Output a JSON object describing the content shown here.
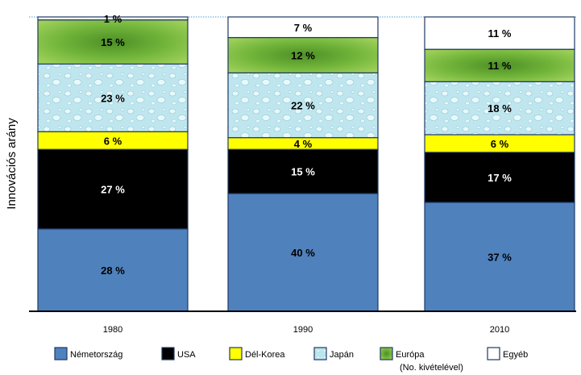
{
  "chart_data": {
    "type": "bar",
    "stacked": true,
    "ylabel": "Innovációs arány",
    "xlabel": "",
    "title": "",
    "categories": [
      "1980",
      "1990",
      "2010"
    ],
    "ylim": [
      0,
      100
    ],
    "series": [
      {
        "name": "Németország",
        "values": [
          28,
          40,
          37
        ],
        "labels": [
          "28 %",
          "40 %",
          "37 %"
        ],
        "color": "#4f81bd",
        "text_color": "#000000",
        "pattern": "solid"
      },
      {
        "name": "USA",
        "values": [
          27,
          15,
          17
        ],
        "labels": [
          "27 %",
          "15 %",
          "17 %"
        ],
        "color": "#000000",
        "text_color": "#ffffff",
        "pattern": "solid"
      },
      {
        "name": "Dél-Korea",
        "values": [
          6,
          4,
          6
        ],
        "labels": [
          "6 %",
          "4 %",
          "6 %"
        ],
        "color": "#ffff00",
        "text_color": "#000000",
        "pattern": "solid"
      },
      {
        "name": "Japán",
        "values": [
          23,
          22,
          18
        ],
        "labels": [
          "23 %",
          "22 %",
          "18 %"
        ],
        "color": "#b8e2ea",
        "text_color": "#000000",
        "pattern": "water-drops"
      },
      {
        "name": "Európa",
        "name_sub": "(No. kivételével)",
        "values": [
          15,
          12,
          11
        ],
        "labels": [
          "15 %",
          "12 %",
          "11 %"
        ],
        "color": "#7dbe3c",
        "text_color": "#000000",
        "pattern": "green-radial"
      },
      {
        "name": "Egyéb",
        "values": [
          1,
          7,
          11
        ],
        "labels": [
          "1 %",
          "7 %",
          "11 %"
        ],
        "color": "#ffffff",
        "text_color": "#000000",
        "pattern": "solid"
      }
    ],
    "grid": false,
    "legend_position": "bottom"
  }
}
